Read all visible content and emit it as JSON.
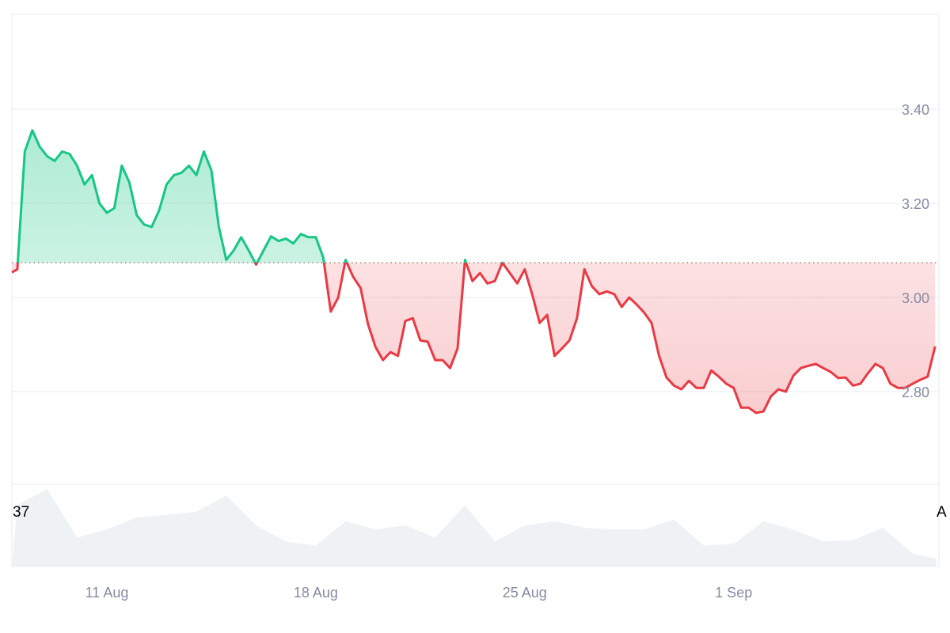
{
  "chart_data": {
    "type": "area",
    "title": "",
    "xlabel": "",
    "ylabel": "",
    "ylim": [
      2.6,
      3.6
    ],
    "yticks": [
      "3.40",
      "3.20",
      "3.00",
      "2.80"
    ],
    "xticks": [
      {
        "label": "11 Aug",
        "date": "Aug 11"
      },
      {
        "label": "18 Aug",
        "date": "Aug 18"
      },
      {
        "label": "25 Aug",
        "date": "Aug 25"
      },
      {
        "label": "1 Sep",
        "date": "Sep 1"
      }
    ],
    "grid": true,
    "baseline": 3.074,
    "colors": {
      "up": "#16c784",
      "down": "#ea3943",
      "volume": "#eff2f5",
      "grid": "#eff2f5",
      "tick": "#858ca2"
    },
    "sample_hours": [
      0,
      6,
      12,
      18
    ],
    "price_series": [
      {
        "date": "Aug 8",
        "prices": [
          3.06,
          3.31,
          3.355,
          3.32
        ]
      },
      {
        "date": "Aug 9",
        "prices": [
          3.3,
          3.29,
          3.31,
          3.305
        ]
      },
      {
        "date": "Aug 10",
        "prices": [
          3.28,
          3.24,
          3.26,
          3.2
        ]
      },
      {
        "date": "Aug 11",
        "prices": [
          3.18,
          3.19,
          3.28,
          3.245
        ]
      },
      {
        "date": "Aug 12",
        "prices": [
          3.175,
          3.155,
          3.15,
          3.185
        ]
      },
      {
        "date": "Aug 13",
        "prices": [
          3.24,
          3.26,
          3.265,
          3.28
        ]
      },
      {
        "date": "Aug 14",
        "prices": [
          3.26,
          3.31,
          3.27,
          3.15
        ]
      },
      {
        "date": "Aug 15",
        "prices": [
          3.08,
          3.1,
          3.128,
          3.1
        ]
      },
      {
        "date": "Aug 16",
        "prices": [
          3.07,
          3.1,
          3.13,
          3.12
        ]
      },
      {
        "date": "Aug 17",
        "prices": [
          3.125,
          3.115,
          3.135,
          3.128
        ]
      },
      {
        "date": "Aug 18",
        "prices": [
          3.128,
          3.085,
          2.97,
          3.0
        ]
      },
      {
        "date": "Aug 19",
        "prices": [
          3.08,
          3.044,
          3.02,
          2.943
        ]
      },
      {
        "date": "Aug 20",
        "prices": [
          2.895,
          2.867,
          2.884,
          2.876
        ]
      },
      {
        "date": "Aug 21",
        "prices": [
          2.95,
          2.956,
          2.909,
          2.906
        ]
      },
      {
        "date": "Aug 22",
        "prices": [
          2.867,
          2.867,
          2.85,
          2.892
        ]
      },
      {
        "date": "Aug 23",
        "prices": [
          3.08,
          3.035,
          3.052,
          3.03
        ]
      },
      {
        "date": "Aug 24",
        "prices": [
          3.035,
          3.074,
          3.052,
          3.03
        ]
      },
      {
        "date": "Aug 25",
        "prices": [
          3.06,
          3.007,
          2.946,
          2.963
        ]
      },
      {
        "date": "Aug 26",
        "prices": [
          2.876,
          2.892,
          2.909,
          2.956
        ]
      },
      {
        "date": "Aug 27",
        "prices": [
          3.06,
          3.024,
          3.007,
          3.013
        ]
      },
      {
        "date": "Aug 28",
        "prices": [
          3.007,
          2.98,
          3.0,
          2.985
        ]
      },
      {
        "date": "Aug 29",
        "prices": [
          2.968,
          2.946,
          2.876,
          2.83
        ]
      },
      {
        "date": "Aug 30",
        "prices": [
          2.813,
          2.805,
          2.823,
          2.808
        ]
      },
      {
        "date": "Aug 31",
        "prices": [
          2.808,
          2.845,
          2.832,
          2.817
        ]
      },
      {
        "date": "Sep 1",
        "prices": [
          2.808,
          2.766,
          2.766,
          2.755
        ]
      },
      {
        "date": "Sep 2",
        "prices": [
          2.758,
          2.79,
          2.805,
          2.8
        ]
      },
      {
        "date": "Sep 3",
        "prices": [
          2.834,
          2.85,
          2.855,
          2.859
        ]
      },
      {
        "date": "Sep 4",
        "prices": [
          2.85,
          2.842,
          2.829,
          2.83
        ]
      },
      {
        "date": "Sep 5",
        "prices": [
          2.813,
          2.817,
          2.839,
          2.859
        ]
      },
      {
        "date": "Sep 6",
        "prices": [
          2.85,
          2.817,
          2.808,
          2.808
        ]
      },
      {
        "date": "Sep 7",
        "prices": [
          2.817,
          2.825,
          2.832,
          2.896
        ]
      }
    ],
    "volume_relative": [
      76,
      96,
      36,
      46,
      61,
      64,
      68,
      88,
      51,
      31,
      26,
      56,
      46,
      51,
      36,
      76,
      31,
      51,
      56,
      48,
      46,
      46,
      58,
      26,
      28,
      56,
      46,
      31,
      33,
      48,
      16
    ],
    "volume_labels": {
      "left": "37",
      "right": "A"
    }
  }
}
